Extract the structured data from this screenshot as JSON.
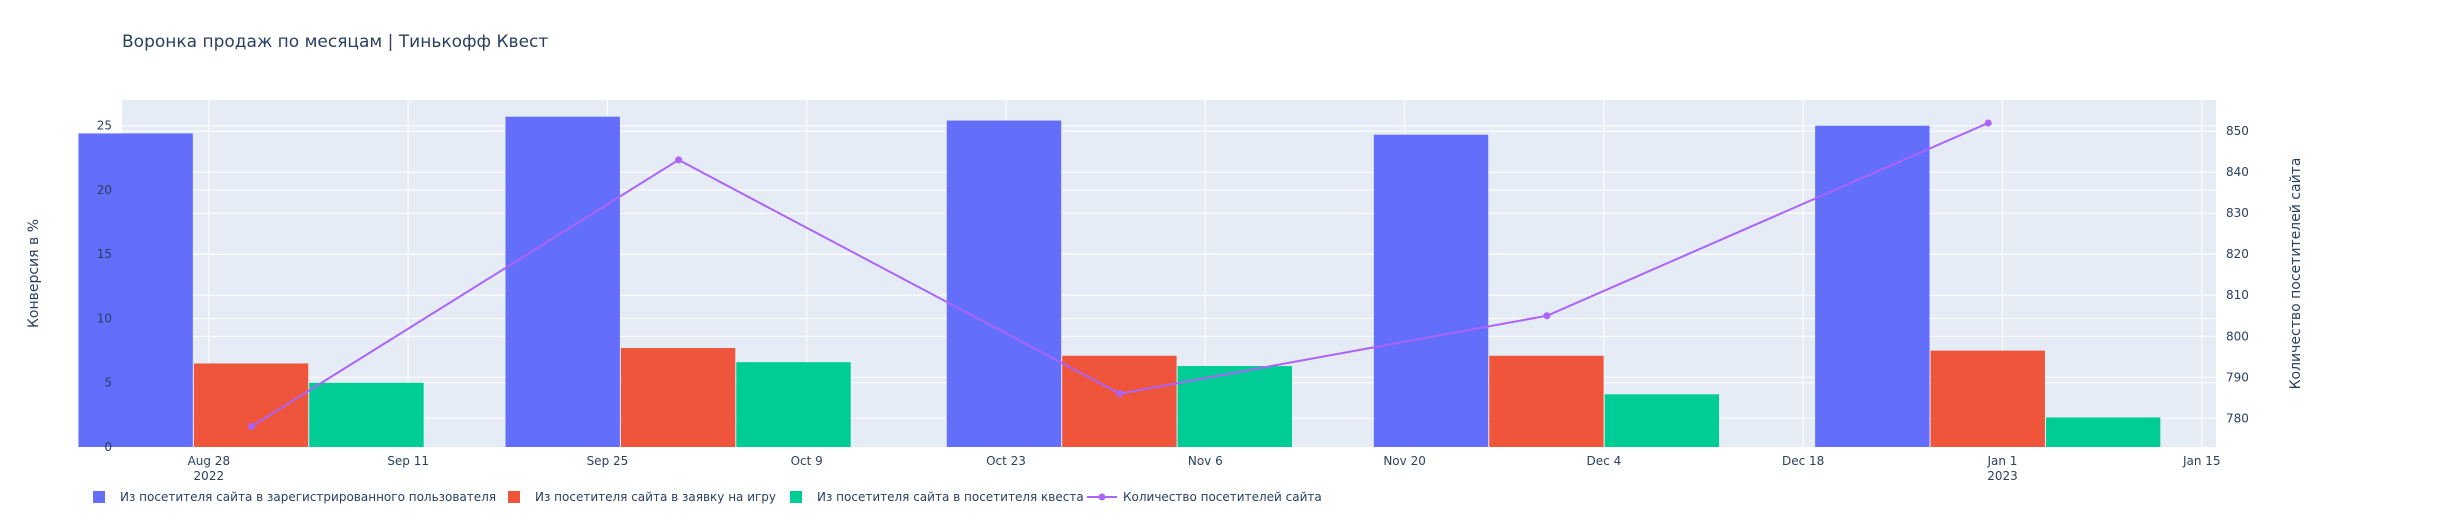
{
  "chart_data": {
    "type": "bar",
    "title": "Воронка продаж по месяцам | Тинькофф Квест",
    "ylabel": "Конверсия в %",
    "y2label": "Количество посетителей сайта",
    "ylim": [
      0,
      27
    ],
    "y2lim": [
      773,
      857.6
    ],
    "yticks": [
      0,
      5,
      10,
      15,
      20,
      25
    ],
    "y2ticks": [
      780,
      790,
      800,
      810,
      820,
      830,
      840,
      850
    ],
    "xrange_days": [
      -6.1,
      141.0
    ],
    "xticks": [
      {
        "day": 0,
        "label": "Aug 28",
        "sub": "2022"
      },
      {
        "day": 14,
        "label": "Sep 11",
        "sub": ""
      },
      {
        "day": 28,
        "label": "Sep 25",
        "sub": ""
      },
      {
        "day": 42,
        "label": "Oct 9",
        "sub": ""
      },
      {
        "day": 56,
        "label": "Oct 23",
        "sub": ""
      },
      {
        "day": 70,
        "label": "Nov 6",
        "sub": ""
      },
      {
        "day": 84,
        "label": "Nov 20",
        "sub": ""
      },
      {
        "day": 98,
        "label": "Dec 4",
        "sub": ""
      },
      {
        "day": 112,
        "label": "Dec 18",
        "sub": ""
      },
      {
        "day": 126,
        "label": "Jan 1",
        "sub": "2023"
      },
      {
        "day": 140,
        "label": "Jan 15",
        "sub": ""
      }
    ],
    "x": [
      "2022-08-31",
      "2022-09-30",
      "2022-10-31",
      "2022-11-30",
      "2022-12-31"
    ],
    "x_days": [
      3,
      33,
      64,
      94,
      125
    ],
    "series": [
      {
        "name": "Из посетителя сайта в зарегистрированного пользователя",
        "type": "bar",
        "color": "#636efa",
        "values": [
          24.4,
          25.7,
          25.4,
          24.3,
          25.0
        ]
      },
      {
        "name": "Из посетителя сайта в заявку на игру",
        "type": "bar",
        "color": "#ef553b",
        "values": [
          6.5,
          7.7,
          7.1,
          7.1,
          7.5
        ]
      },
      {
        "name": "Из посетителя сайта в посетителя квеста",
        "type": "bar",
        "color": "#00cc96",
        "values": [
          5.0,
          6.6,
          6.3,
          4.1,
          2.3
        ]
      },
      {
        "name": "Количество посетителей сайта",
        "type": "line",
        "axis": "y2",
        "color": "#ab63fa",
        "values": [
          778,
          843,
          786,
          805,
          852
        ]
      }
    ],
    "grid": true,
    "legend_position": "bottom-left"
  }
}
